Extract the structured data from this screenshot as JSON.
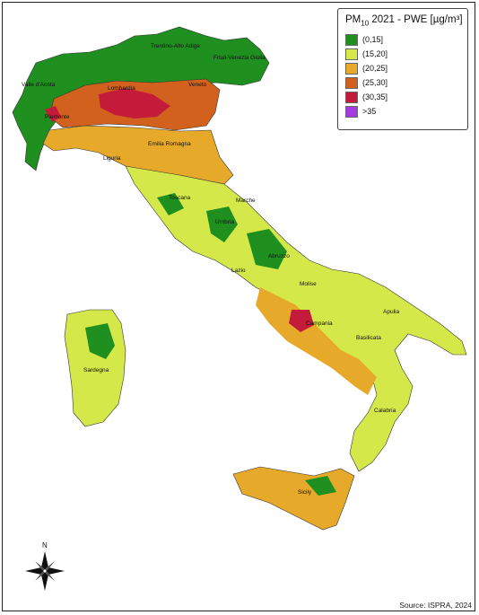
{
  "legend": {
    "title_prefix": "PM",
    "title_subscript": "10",
    "title_suffix": " 2021 - PWE [µg/m³]",
    "classes": [
      {
        "label": "(0,15]",
        "color": "#1f8f1f"
      },
      {
        "label": "(15,20]",
        "color": "#d4e84a"
      },
      {
        "label": "(20,25]",
        "color": "#e7a92a"
      },
      {
        "label": "(25,30]",
        "color": "#d2611d"
      },
      {
        "label": "(30,35]",
        "color": "#c51b3b"
      },
      {
        "label": ">35",
        "color": "#a43be0"
      }
    ]
  },
  "regions": {
    "trentino": "Trentino-Alto Adige",
    "friuli": "Friuli-Venezia Giulia",
    "valle_aosta": "Valle d'Aosta",
    "lombardia": "Lombardia",
    "veneto": "Veneto",
    "piemonte": "Piemonte",
    "emilia": "Emilia Romagna",
    "liguria": "Liguria",
    "toscana": "Toscana",
    "marche": "Marche",
    "umbria": "Umbria",
    "abruzzo": "Abruzzo",
    "lazio": "Lazio",
    "molise": "Molise",
    "campania": "Campania",
    "puglia": "Apulia",
    "basilicata": "Basilicata",
    "sardegna": "Sardegna",
    "calabria": "Calabria",
    "sicily": "Sicily"
  },
  "compass": {
    "north_label": "N"
  },
  "source": "Source: ISPRA, 2024"
}
